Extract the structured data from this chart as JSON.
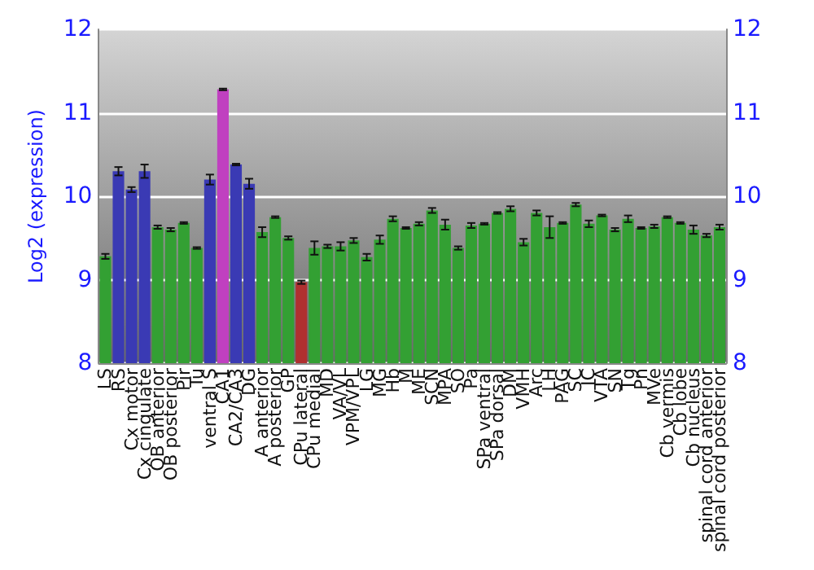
{
  "chart_data": {
    "type": "bar",
    "ylabel": "Log2 (expression)",
    "categories": [
      "LS",
      "RS",
      "Cx motor",
      "Cx cingulate",
      "OB anterior",
      "OB posterior",
      "Pir",
      "Tu",
      "ventral S",
      "CA1",
      "CA2/CA3",
      "DG",
      "A anterior",
      "A posterior",
      "GP",
      "CPu lateral",
      "CPu medial",
      "MD",
      "VA/VL",
      "VPM/VPL",
      "LG",
      "MG",
      "Hb",
      "M",
      "ME",
      "SCN",
      "MPA",
      "SO",
      "Pa",
      "SPa ventral",
      "SPa dorsal",
      "DM",
      "VMH",
      "Arc",
      "LH",
      "PAG",
      "SC",
      "IC",
      "VTA",
      "SN",
      "Tg",
      "Pn",
      "MVe",
      "Cb vermis",
      "Cb lobe",
      "Cb nucleus",
      "spinal cord anterior",
      "spinal cord posterior"
    ],
    "values": [
      9.28,
      10.3,
      10.08,
      10.3,
      9.63,
      9.6,
      9.68,
      9.38,
      10.2,
      11.28,
      10.38,
      10.15,
      9.57,
      9.75,
      9.5,
      8.97,
      9.38,
      9.4,
      9.4,
      9.47,
      9.27,
      9.48,
      9.73,
      9.62,
      9.67,
      9.83,
      9.66,
      9.38,
      9.65,
      9.67,
      9.8,
      9.85,
      9.45,
      9.8,
      9.63,
      9.68,
      9.9,
      9.67,
      9.77,
      9.6,
      9.73,
      9.62,
      9.64,
      9.75,
      9.68,
      9.6,
      9.53,
      9.63
    ],
    "errors": [
      0.03,
      0.05,
      0.03,
      0.08,
      0.02,
      0.02,
      0.01,
      0.01,
      0.06,
      0.01,
      0.01,
      0.06,
      0.06,
      0.01,
      0.02,
      0.02,
      0.08,
      0.02,
      0.05,
      0.03,
      0.04,
      0.05,
      0.03,
      0.01,
      0.02,
      0.03,
      0.06,
      0.02,
      0.03,
      0.01,
      0.01,
      0.03,
      0.04,
      0.03,
      0.13,
      0.01,
      0.02,
      0.04,
      0.01,
      0.02,
      0.04,
      0.01,
      0.02,
      0.01,
      0.01,
      0.05,
      0.02,
      0.03
    ],
    "colors": [
      "#33a033",
      "#3a3ab4",
      "#3a3ab4",
      "#3a3ab4",
      "#33a033",
      "#33a033",
      "#33a033",
      "#33a033",
      "#3a3ab4",
      "#c040c0",
      "#3a3ab4",
      "#3a3ab4",
      "#33a033",
      "#33a033",
      "#33a033",
      "#b03030",
      "#33a033",
      "#33a033",
      "#33a033",
      "#33a033",
      "#33a033",
      "#33a033",
      "#33a033",
      "#33a033",
      "#33a033",
      "#33a033",
      "#33a033",
      "#33a033",
      "#33a033",
      "#33a033",
      "#33a033",
      "#33a033",
      "#33a033",
      "#33a033",
      "#33a033",
      "#33a033",
      "#33a033",
      "#33a033",
      "#33a033",
      "#33a033",
      "#33a033",
      "#33a033",
      "#33a033",
      "#33a033",
      "#33a033",
      "#33a033",
      "#33a033",
      "#33a033"
    ],
    "ylim": [
      8,
      12
    ],
    "yticks": [
      8,
      9,
      10,
      11,
      12
    ],
    "y2lim": [
      8,
      12
    ],
    "y2ticks": [
      8,
      9,
      10,
      11,
      12
    ],
    "grid": "y"
  }
}
